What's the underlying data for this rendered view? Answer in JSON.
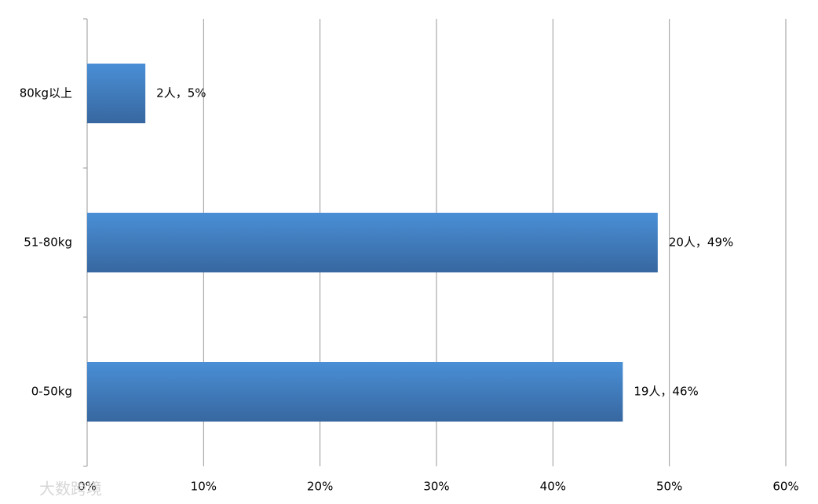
{
  "chart_data": {
    "type": "barh",
    "categories": [
      "0-50kg",
      "51-80kg",
      "80kg以上"
    ],
    "values": [
      46,
      49,
      5
    ],
    "value_labels": [
      "19人，46%",
      "20人，49%",
      "2人，5%"
    ],
    "color": "#4a8fd6",
    "xlim": [
      0,
      60
    ],
    "xticks": [
      {
        "value": 0,
        "label": "0%"
      },
      {
        "value": 10,
        "label": "10%"
      },
      {
        "value": 20,
        "label": "20%"
      },
      {
        "value": 30,
        "label": "30%"
      },
      {
        "value": 40,
        "label": "40%"
      },
      {
        "value": 50,
        "label": "50%"
      },
      {
        "value": 60,
        "label": "60%"
      }
    ],
    "grid": true
  },
  "watermark": "大数跨境"
}
